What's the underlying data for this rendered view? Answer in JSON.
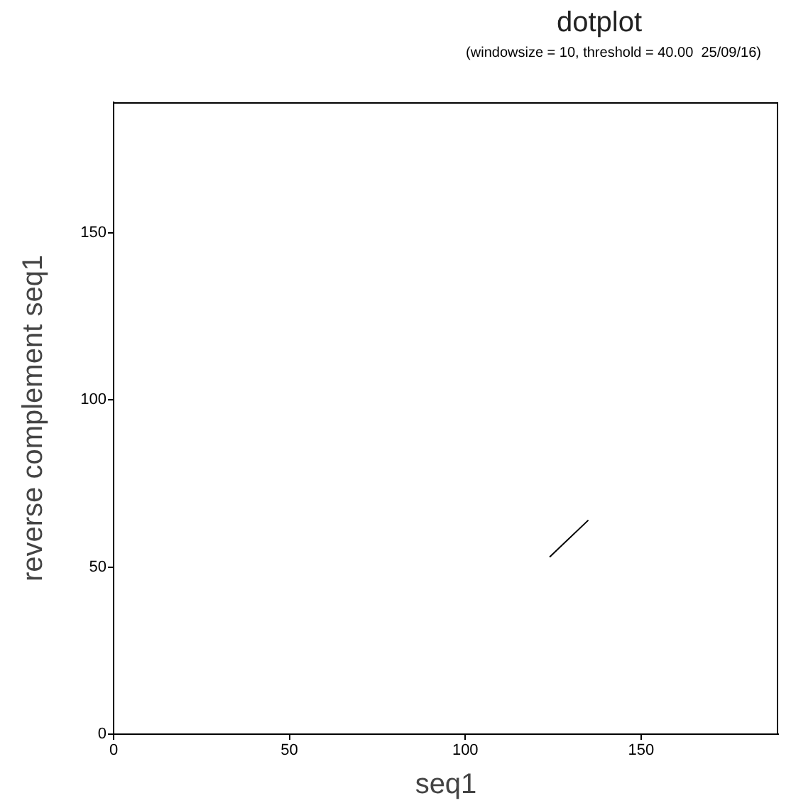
{
  "chart_data": {
    "type": "line",
    "title": "dotplot",
    "subtitle": "(windowsize = 10, threshold = 40.00  25/09/16)",
    "xlabel": "seq1",
    "ylabel": "reverse complement seq1",
    "xlim": [
      0,
      189
    ],
    "ylim": [
      0,
      189
    ],
    "xticks": [
      0,
      50,
      100,
      150
    ],
    "yticks": [
      0,
      50,
      100,
      150
    ],
    "series": [
      {
        "color": "#000000",
        "x": [
          124,
          135
        ],
        "values": [
          53,
          64
        ]
      }
    ],
    "marker": "none",
    "legend": false
  }
}
